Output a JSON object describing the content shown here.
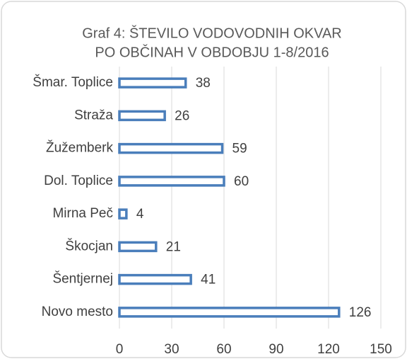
{
  "chart_data": {
    "type": "bar",
    "orientation": "horizontal",
    "title_lines": [
      "Graf 4: ŠTEVILO VODOVODNIH OKVAR",
      "PO OBČINAH  V OBDOBJU 1-8/2016"
    ],
    "categories": [
      "Šmar. Toplice",
      "Straža",
      "Žužemberk",
      "Dol. Toplice",
      "Mirna Peč",
      "Škocjan",
      "Šentjernej",
      "Novo mesto"
    ],
    "values": [
      38,
      26,
      59,
      60,
      4,
      21,
      41,
      126
    ],
    "color": "#4a7ebb",
    "xlim": [
      0,
      150
    ],
    "xticks": [
      0,
      30,
      60,
      90,
      120,
      150
    ],
    "grid": true
  }
}
